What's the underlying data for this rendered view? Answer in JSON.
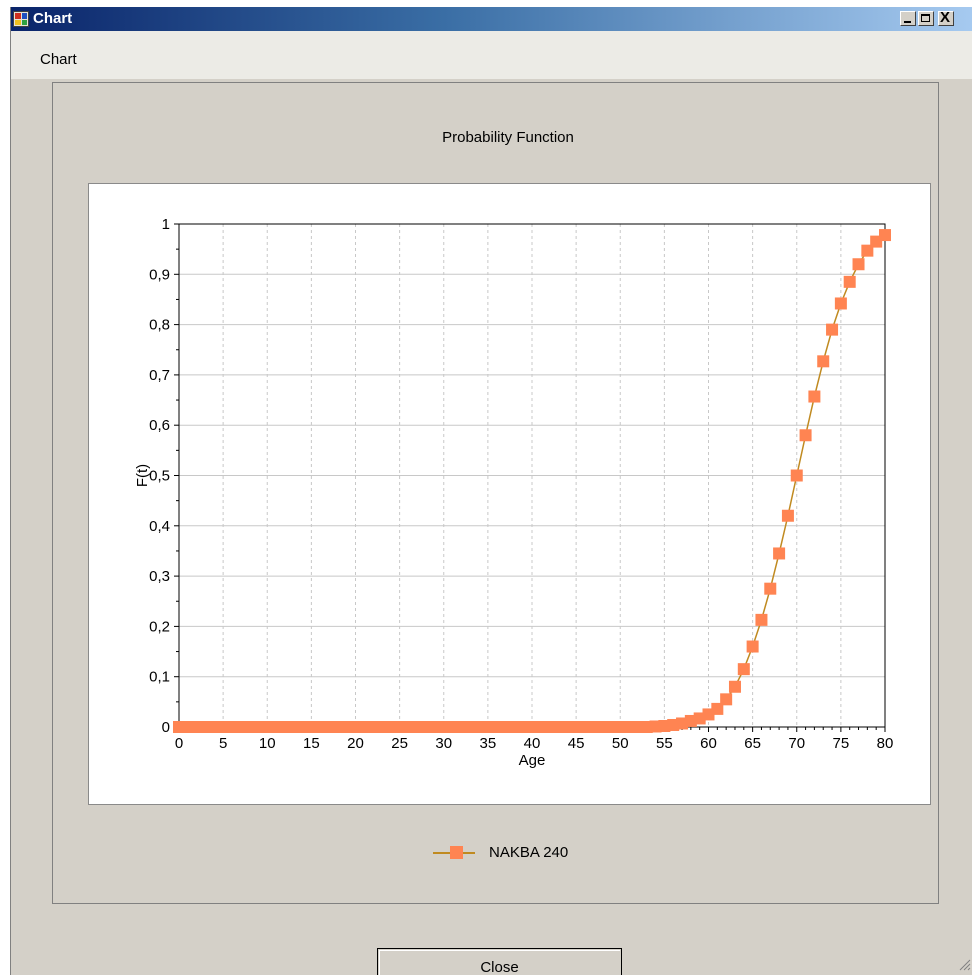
{
  "window": {
    "title": "Chart",
    "icon": "chart-app-icon"
  },
  "titlebar_buttons": {
    "minimize": "minimize-icon",
    "maximize": "maximize-icon",
    "close": "close-icon",
    "close_glyph": "X"
  },
  "menu": {
    "items": [
      {
        "label": "Chart"
      }
    ]
  },
  "colors": {
    "series_marker": "#ff8452",
    "series_line": "#c08a20",
    "panel": "#d4d0c8"
  },
  "chart_data": {
    "type": "line",
    "title": "Probability Function",
    "xlabel": "Age",
    "ylabel": "F(t)",
    "xlim": [
      0,
      80
    ],
    "ylim": [
      0,
      1
    ],
    "x_ticks": [
      "0",
      "5",
      "10",
      "15",
      "20",
      "25",
      "30",
      "35",
      "40",
      "45",
      "50",
      "55",
      "60",
      "65",
      "70",
      "75",
      "80"
    ],
    "y_ticks": [
      "0",
      "0,1",
      "0,2",
      "0,3",
      "0,4",
      "0,5",
      "0,6",
      "0,7",
      "0,8",
      "0,9",
      "1"
    ],
    "grid": true,
    "legend_position": "bottom-center",
    "series": [
      {
        "name": "NAKBA 240",
        "x": [
          0,
          1,
          2,
          3,
          4,
          5,
          6,
          7,
          8,
          9,
          10,
          11,
          12,
          13,
          14,
          15,
          16,
          17,
          18,
          19,
          20,
          21,
          22,
          23,
          24,
          25,
          26,
          27,
          28,
          29,
          30,
          31,
          32,
          33,
          34,
          35,
          36,
          37,
          38,
          39,
          40,
          41,
          42,
          43,
          44,
          45,
          46,
          47,
          48,
          49,
          50,
          51,
          52,
          53,
          54,
          55,
          56,
          57,
          58,
          59,
          60,
          61,
          62,
          63,
          64,
          65,
          66,
          67,
          68,
          69,
          70,
          71,
          72,
          73,
          74,
          75,
          76,
          77,
          78,
          79,
          80
        ],
        "y": [
          0,
          0,
          0,
          0,
          0,
          0,
          0,
          0,
          0,
          0,
          0,
          0,
          0,
          0,
          0,
          0,
          0,
          0,
          0,
          0,
          0,
          0,
          0,
          0,
          0,
          0,
          0,
          0,
          0,
          0,
          0,
          0,
          0,
          0,
          0,
          0,
          0,
          0,
          0,
          0,
          0,
          0,
          0,
          0,
          0,
          0,
          0,
          0,
          0,
          0,
          0,
          0,
          0,
          0,
          0.001,
          0.002,
          0.004,
          0.007,
          0.012,
          0.017,
          0.025,
          0.036,
          0.055,
          0.08,
          0.115,
          0.16,
          0.213,
          0.275,
          0.345,
          0.42,
          0.5,
          0.58,
          0.657,
          0.727,
          0.79,
          0.842,
          0.885,
          0.92,
          0.947,
          0.965,
          0.978
        ]
      }
    ]
  },
  "buttons": {
    "close_label": "Close"
  }
}
